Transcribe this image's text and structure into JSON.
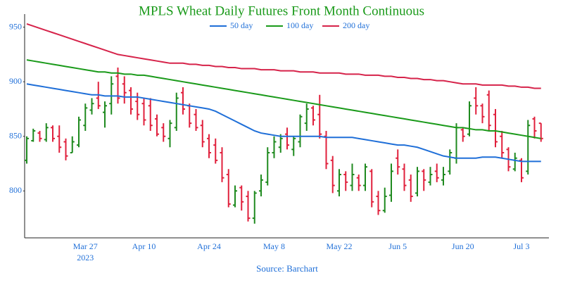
{
  "chart_data": {
    "type": "ohlc",
    "title": "MPLS Wheat Daily Futures Front Month Continuous",
    "source": "Source: Barchart",
    "categories": [
      null,
      null,
      null,
      null,
      null,
      null,
      null,
      null,
      null,
      "Mar 27",
      null,
      null,
      null,
      null,
      null,
      null,
      null,
      null,
      "Apr 10",
      null,
      null,
      null,
      null,
      null,
      null,
      null,
      null,
      null,
      "Apr 24",
      null,
      null,
      null,
      null,
      null,
      null,
      null,
      null,
      null,
      "May 8",
      null,
      null,
      null,
      null,
      null,
      null,
      null,
      null,
      null,
      "May 22",
      null,
      null,
      null,
      null,
      null,
      null,
      null,
      null,
      "Jun 5",
      null,
      null,
      null,
      null,
      null,
      null,
      null,
      null,
      null,
      "Jun 20",
      null,
      null,
      null,
      null,
      null,
      null,
      null,
      null,
      "Jul 3",
      null,
      null,
      null
    ],
    "x_year": "2023",
    "ohlc": {
      "up_color": "#1f8a1f",
      "down_color": "#e0203c",
      "open": [
        828,
        846,
        853,
        847,
        858,
        850,
        845,
        835,
        842,
        860,
        874,
        885,
        872,
        880,
        905,
        898,
        892,
        882,
        880,
        878,
        866,
        858,
        848,
        858,
        890,
        878,
        870,
        860,
        848,
        842,
        835,
        815,
        787,
        803,
        795,
        775,
        800,
        808,
        835,
        840,
        852,
        838,
        845,
        862,
        876,
        870,
        850,
        828,
        800,
        815,
        805,
        812,
        805,
        818,
        795,
        782,
        796,
        830,
        820,
        810,
        798,
        818,
        808,
        818,
        810,
        818,
        830,
        856,
        852,
        885,
        878,
        888,
        870,
        850,
        838,
        820,
        828,
        818,
        866,
        862
      ],
      "high": [
        850,
        857,
        855,
        862,
        860,
        860,
        848,
        850,
        868,
        880,
        885,
        900,
        882,
        905,
        913,
        905,
        895,
        890,
        885,
        885,
        870,
        862,
        865,
        890,
        895,
        880,
        875,
        865,
        852,
        848,
        840,
        820,
        805,
        805,
        800,
        800,
        815,
        840,
        850,
        852,
        858,
        850,
        870,
        880,
        878,
        888,
        855,
        832,
        820,
        818,
        825,
        815,
        825,
        820,
        800,
        803,
        825,
        838,
        825,
        815,
        822,
        820,
        822,
        825,
        822,
        838,
        862,
        858,
        882,
        895,
        880,
        892,
        875,
        855,
        840,
        835,
        830,
        865,
        868,
        862
      ],
      "low": [
        825,
        845,
        845,
        845,
        845,
        835,
        828,
        835,
        840,
        855,
        870,
        875,
        858,
        870,
        880,
        880,
        870,
        865,
        860,
        855,
        850,
        845,
        840,
        855,
        870,
        858,
        855,
        840,
        830,
        825,
        808,
        785,
        785,
        782,
        772,
        770,
        795,
        805,
        830,
        835,
        838,
        832,
        840,
        855,
        860,
        848,
        820,
        798,
        795,
        800,
        800,
        800,
        800,
        785,
        778,
        780,
        790,
        815,
        800,
        790,
        795,
        800,
        805,
        808,
        805,
        815,
        825,
        845,
        850,
        870,
        862,
        855,
        840,
        830,
        818,
        818,
        808,
        815,
        848,
        845
      ],
      "close": [
        848,
        855,
        848,
        858,
        848,
        840,
        832,
        845,
        865,
        876,
        880,
        878,
        878,
        898,
        885,
        890,
        875,
        870,
        865,
        860,
        852,
        850,
        862,
        885,
        875,
        862,
        858,
        845,
        835,
        828,
        812,
        788,
        800,
        790,
        775,
        798,
        810,
        835,
        845,
        848,
        842,
        848,
        868,
        875,
        865,
        852,
        825,
        805,
        815,
        808,
        815,
        805,
        822,
        790,
        782,
        795,
        818,
        822,
        805,
        795,
        818,
        810,
        815,
        812,
        815,
        835,
        858,
        850,
        878,
        878,
        868,
        860,
        845,
        835,
        822,
        830,
        812,
        860,
        855,
        848
      ]
    },
    "series": [
      {
        "name": "50 day",
        "color": "#1f6fd8",
        "values": [
          898,
          897,
          896,
          895,
          894,
          893,
          892,
          891,
          890,
          889,
          888,
          888,
          887,
          887,
          887,
          886,
          886,
          886,
          885,
          884,
          883,
          882,
          881,
          880,
          879,
          878,
          877,
          876,
          875,
          873,
          870,
          867,
          864,
          861,
          858,
          855,
          853,
          852,
          851,
          850,
          850,
          850,
          850,
          850,
          850,
          850,
          849,
          849,
          849,
          849,
          849,
          848,
          847,
          846,
          845,
          844,
          843,
          842,
          842,
          841,
          840,
          838,
          836,
          834,
          832,
          831,
          830,
          830,
          830,
          830,
          831,
          831,
          831,
          830,
          829,
          828,
          827,
          827,
          827,
          827
        ]
      },
      {
        "name": "100 day",
        "color": "#1a9a1a",
        "values": [
          920,
          919,
          918,
          917,
          916,
          915,
          914,
          913,
          912,
          911,
          910,
          909,
          909,
          908,
          908,
          907,
          907,
          906,
          906,
          905,
          904,
          903,
          902,
          901,
          900,
          899,
          898,
          897,
          896,
          895,
          894,
          893,
          892,
          891,
          890,
          889,
          888,
          887,
          886,
          885,
          884,
          883,
          882,
          881,
          880,
          879,
          878,
          877,
          876,
          875,
          874,
          873,
          872,
          871,
          870,
          869,
          868,
          867,
          866,
          865,
          864,
          863,
          862,
          861,
          860,
          859,
          858,
          858,
          857,
          856,
          856,
          855,
          855,
          854,
          853,
          852,
          851,
          850,
          849,
          848
        ]
      },
      {
        "name": "200 day",
        "color": "#d6234a",
        "values": [
          953,
          951,
          949,
          947,
          945,
          943,
          941,
          939,
          937,
          935,
          933,
          931,
          929,
          927,
          925,
          924,
          923,
          922,
          921,
          920,
          919,
          918,
          917,
          917,
          917,
          916,
          916,
          915,
          915,
          914,
          914,
          913,
          913,
          912,
          912,
          912,
          911,
          911,
          911,
          910,
          910,
          910,
          909,
          909,
          909,
          908,
          908,
          908,
          908,
          907,
          907,
          907,
          906,
          906,
          906,
          905,
          905,
          904,
          904,
          903,
          903,
          902,
          902,
          901,
          901,
          900,
          899,
          898,
          898,
          898,
          897,
          897,
          897,
          897,
          896,
          896,
          895,
          895,
          894,
          894
        ]
      }
    ],
    "ylim": [
      757,
      962
    ],
    "yticks": [
      800,
      850,
      900,
      950
    ]
  }
}
